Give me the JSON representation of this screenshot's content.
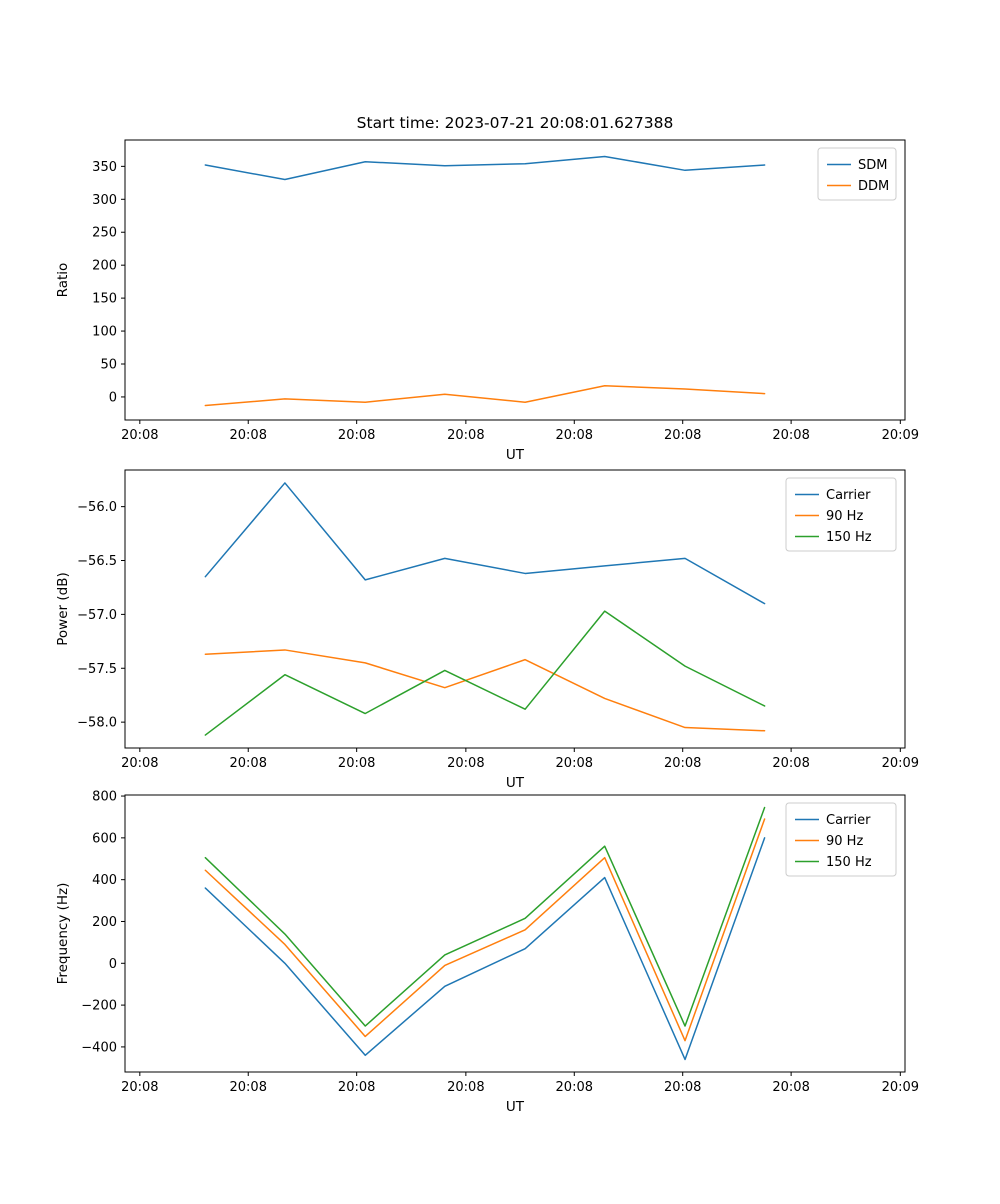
{
  "figure": {
    "background": "#ffffff",
    "num_subplots": 3
  },
  "chart_data": [
    {
      "type": "line",
      "title": "Start time: 2023-07-21 20:08:01.627388",
      "xlabel": "UT",
      "ylabel": "Ratio",
      "ylim": [
        -35,
        390
      ],
      "ytick_values": [
        0,
        50,
        100,
        150,
        200,
        250,
        300,
        350
      ],
      "ytick_labels": [
        "0",
        "50",
        "100",
        "150",
        "200",
        "250",
        "300",
        "350"
      ],
      "xticks": [
        0.019,
        0.158,
        0.297,
        0.437,
        0.576,
        0.715,
        0.854,
        0.994
      ],
      "xtick_labels": [
        "20:08",
        "20:08",
        "20:08",
        "20:08",
        "20:08",
        "20:08",
        "20:08",
        "20:09"
      ],
      "legend_position": "upper right",
      "grid": false,
      "x": [
        0.103,
        0.205,
        0.308,
        0.41,
        0.513,
        0.615,
        0.718,
        0.82
      ],
      "series": [
        {
          "name": "SDM",
          "color": "#1f77b4",
          "values": [
            352,
            330,
            357,
            351,
            354,
            365,
            344,
            352
          ]
        },
        {
          "name": "DDM",
          "color": "#ff7f0e",
          "values": [
            -13,
            -3,
            -8,
            4,
            -8,
            17,
            12,
            5
          ]
        }
      ]
    },
    {
      "type": "line",
      "title": "",
      "xlabel": "UT",
      "ylabel": "Power (dB)",
      "ylim": [
        -58.24,
        -55.66
      ],
      "ytick_values": [
        -56.0,
        -56.5,
        -57.0,
        -57.5,
        -58.0
      ],
      "ytick_labels": [
        "−56.0",
        "−56.5",
        "−57.0",
        "−57.5",
        "−58.0"
      ],
      "xticks": [
        0.019,
        0.158,
        0.297,
        0.437,
        0.576,
        0.715,
        0.854,
        0.994
      ],
      "xtick_labels": [
        "20:08",
        "20:08",
        "20:08",
        "20:08",
        "20:08",
        "20:08",
        "20:08",
        "20:09"
      ],
      "legend_position": "upper right",
      "grid": false,
      "x": [
        0.103,
        0.205,
        0.308,
        0.41,
        0.513,
        0.615,
        0.718,
        0.82
      ],
      "series": [
        {
          "name": "Carrier",
          "color": "#1f77b4",
          "values": [
            -56.65,
            -55.78,
            -56.68,
            -56.48,
            -56.62,
            -56.55,
            -56.48,
            -56.9
          ]
        },
        {
          "name": "90 Hz",
          "color": "#ff7f0e",
          "values": [
            -57.37,
            -57.33,
            -57.45,
            -57.68,
            -57.42,
            -57.78,
            -58.05,
            -58.08
          ]
        },
        {
          "name": "150 Hz",
          "color": "#2ca02c",
          "values": [
            -58.12,
            -57.56,
            -57.92,
            -57.52,
            -57.88,
            -56.97,
            -57.48,
            -57.85
          ]
        }
      ]
    },
    {
      "type": "line",
      "title": "",
      "xlabel": "UT",
      "ylabel": "Frequency (Hz)",
      "ylim": [
        -520,
        805
      ],
      "ytick_values": [
        -400,
        -200,
        0,
        200,
        400,
        600,
        800
      ],
      "ytick_labels": [
        "−400",
        "−200",
        "0",
        "200",
        "400",
        "600",
        "800"
      ],
      "xticks": [
        0.019,
        0.158,
        0.297,
        0.437,
        0.576,
        0.715,
        0.854,
        0.994
      ],
      "xtick_labels": [
        "20:08",
        "20:08",
        "20:08",
        "20:08",
        "20:08",
        "20:08",
        "20:08",
        "20:09"
      ],
      "legend_position": "upper right",
      "grid": false,
      "x": [
        0.103,
        0.205,
        0.308,
        0.41,
        0.513,
        0.615,
        0.718,
        0.82
      ],
      "series": [
        {
          "name": "Carrier",
          "color": "#1f77b4",
          "values": [
            360,
            0,
            -440,
            -110,
            70,
            410,
            -460,
            600
          ]
        },
        {
          "name": "90 Hz",
          "color": "#ff7f0e",
          "values": [
            445,
            90,
            -350,
            -10,
            160,
            505,
            -370,
            690
          ]
        },
        {
          "name": "150 Hz",
          "color": "#2ca02c",
          "values": [
            505,
            140,
            -300,
            40,
            215,
            560,
            -300,
            745
          ]
        }
      ]
    }
  ]
}
